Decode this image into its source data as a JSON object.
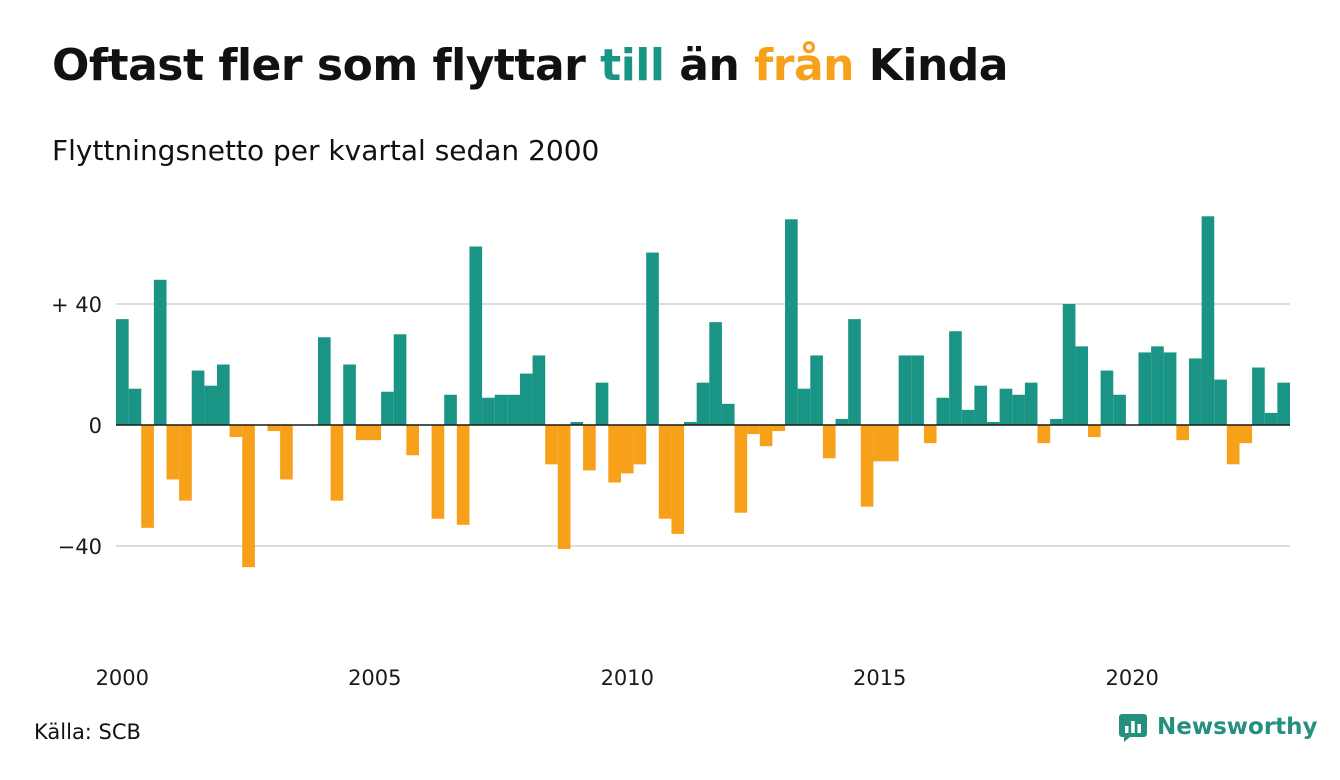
{
  "title": {
    "part1": "Oftast fler som flyttar ",
    "part2": "till",
    "part3": " än ",
    "part4": "från",
    "part5": " Kinda",
    "color_till": "#1a9585",
    "color_fran": "#f7a11a"
  },
  "subtitle": "Flyttningsnetto per kvartal sedan 2000",
  "source": "Källa: SCB",
  "brand": {
    "name": "Newsworthy",
    "icon": "bar-chart-speech-bubble-icon",
    "color": "#25907d"
  },
  "chart_data": {
    "type": "bar",
    "x_start": "2000 Q1",
    "x_step": "quarter",
    "x_ticks": [
      {
        "label": "2000",
        "index": 0
      },
      {
        "label": "2005",
        "index": 20
      },
      {
        "label": "2010",
        "index": 40
      },
      {
        "label": "2015",
        "index": 60
      },
      {
        "label": "2020",
        "index": 80
      }
    ],
    "y_ticks": [
      {
        "label": "+ 40",
        "value": 40
      },
      {
        "label": "0",
        "value": 0
      },
      {
        "label": "−40",
        "value": -40
      }
    ],
    "ylim": [
      -63,
      70
    ],
    "grid": true,
    "positive_color": "#1a9585",
    "negative_color": "#f7a11a",
    "values": [
      35,
      12,
      -34,
      48,
      -18,
      -25,
      18,
      13,
      20,
      -4,
      -47,
      0,
      -2,
      -18,
      0,
      0,
      29,
      -25,
      20,
      -5,
      -5,
      11,
      30,
      -10,
      0,
      -31,
      10,
      -33,
      59,
      9,
      10,
      10,
      17,
      23,
      -13,
      -41,
      1,
      -15,
      14,
      -19,
      -16,
      -13,
      57,
      -31,
      -36,
      1,
      14,
      34,
      7,
      -29,
      -3,
      -7,
      -2,
      68,
      12,
      23,
      -11,
      2,
      35,
      -27,
      -12,
      -12,
      23,
      23,
      -6,
      9,
      31,
      5,
      13,
      1,
      12,
      10,
      14,
      -6,
      2,
      40,
      26,
      -4,
      18,
      10,
      0,
      24,
      26,
      24,
      -5,
      22,
      69,
      15,
      -13,
      -6,
      19,
      4,
      14
    ]
  }
}
